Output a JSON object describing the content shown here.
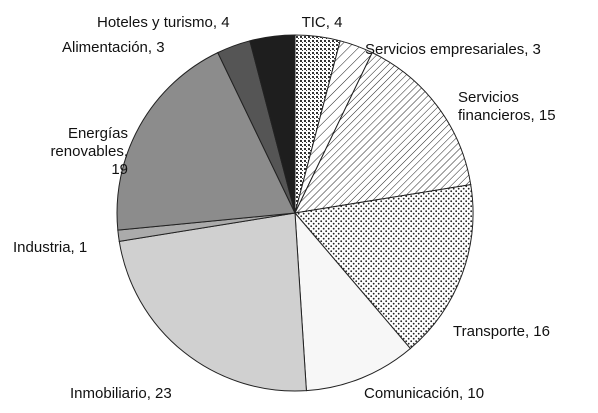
{
  "chart_data": {
    "type": "pie",
    "categories": [
      "TIC",
      "Servicios empresariales",
      "Servicios financieros",
      "Transporte",
      "Comunicación",
      "Inmobiliario",
      "Industria",
      "Energías renovables",
      "Alimentación",
      "Hoteles y turismo"
    ],
    "values": [
      4,
      3,
      15,
      16,
      10,
      23,
      1,
      19,
      3,
      4
    ],
    "value_labels": [
      [
        "TIC, 4"
      ],
      [
        "Servicios empresariales, 3"
      ],
      [
        "Servicios",
        "financieros, 15"
      ],
      [
        "Transporte, 16"
      ],
      [
        "Comunicación, 10"
      ],
      [
        "Inmobiliario, 23"
      ],
      [
        "Industria, 1"
      ],
      [
        "Energías",
        "renovables,",
        "19"
      ],
      [
        "Alimentación, 3"
      ],
      [
        "Hoteles y turismo, 4"
      ]
    ],
    "colors": [
      "#ffffff",
      "#ffffff",
      "#ffffff",
      "#ffffff",
      "#f7f7f7",
      "#d0d0d0",
      "#ababab",
      "#8c8c8c",
      "#555555",
      "#1e1e1e"
    ]
  }
}
